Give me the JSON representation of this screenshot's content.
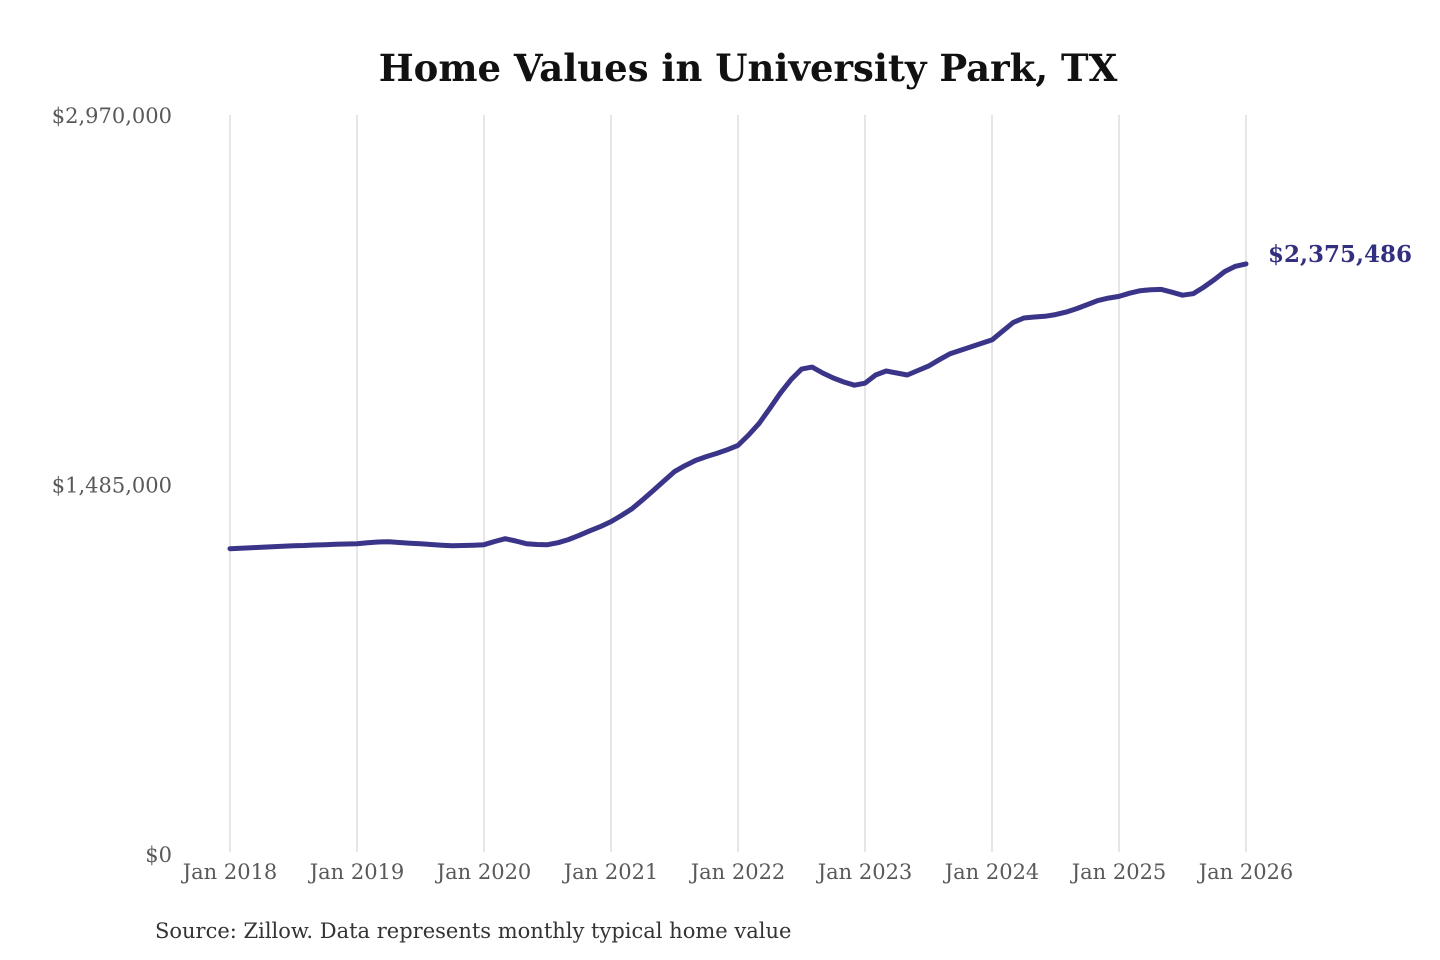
{
  "page": {
    "background_color": "#ffffff"
  },
  "chart_data": {
    "type": "line",
    "title": "Home Values in University Park, TX",
    "source_note": "Source: Zillow. Data represents monthly typical home value",
    "xlabel": "",
    "ylabel": "",
    "legend": "none",
    "grid": "vertical-only",
    "grid_color": "#cccccc",
    "tick_label_color": "#595959",
    "ylim": [
      0,
      2970000
    ],
    "y_ticks": [
      {
        "label": "$0",
        "value": 0
      },
      {
        "label": "$1,485,000",
        "value": 1485000
      },
      {
        "label": "$2,970,000",
        "value": 2970000
      }
    ],
    "x_tick_labels": [
      "Jan 2018",
      "Jan 2019",
      "Jan 2020",
      "Jan 2021",
      "Jan 2022",
      "Jan 2023",
      "Jan 2024",
      "Jan 2025",
      "Jan 2026"
    ],
    "x_start_month": "2018-01",
    "x_end_month": "2026-01",
    "end_annotation": {
      "label": "$2,375,486",
      "value": 2375486,
      "color": "#332f80"
    },
    "series": [
      {
        "name": "Monthly typical home value",
        "color": "#3b3589",
        "monthly_values": [
          1231000,
          1233000,
          1235000,
          1237000,
          1239000,
          1241000,
          1243000,
          1244000,
          1246000,
          1247000,
          1249000,
          1250000,
          1251000,
          1255000,
          1258000,
          1259000,
          1256000,
          1253000,
          1251000,
          1248000,
          1245000,
          1243000,
          1244000,
          1245000,
          1247000,
          1260000,
          1271000,
          1262000,
          1251000,
          1248000,
          1247000,
          1255000,
          1268000,
          1285000,
          1303000,
          1320000,
          1340000,
          1365000,
          1392000,
          1428000,
          1465000,
          1503000,
          1541000,
          1565000,
          1586000,
          1601000,
          1614000,
          1629000,
          1646000,
          1688000,
          1735000,
          1795000,
          1856000,
          1910000,
          1953000,
          1961000,
          1937000,
          1917000,
          1901000,
          1888000,
          1896000,
          1929000,
          1945000,
          1937000,
          1929000,
          1947000,
          1965000,
          1990000,
          2014000,
          2028000,
          2042000,
          2056000,
          2070000,
          2105000,
          2140000,
          2158000,
          2162000,
          2165000,
          2172000,
          2182000,
          2196000,
          2212000,
          2228000,
          2238000,
          2245000,
          2258000,
          2268000,
          2272000,
          2273000,
          2262000,
          2250000,
          2256000,
          2282000,
          2312000,
          2345000,
          2366000,
          2375486
        ]
      }
    ]
  }
}
